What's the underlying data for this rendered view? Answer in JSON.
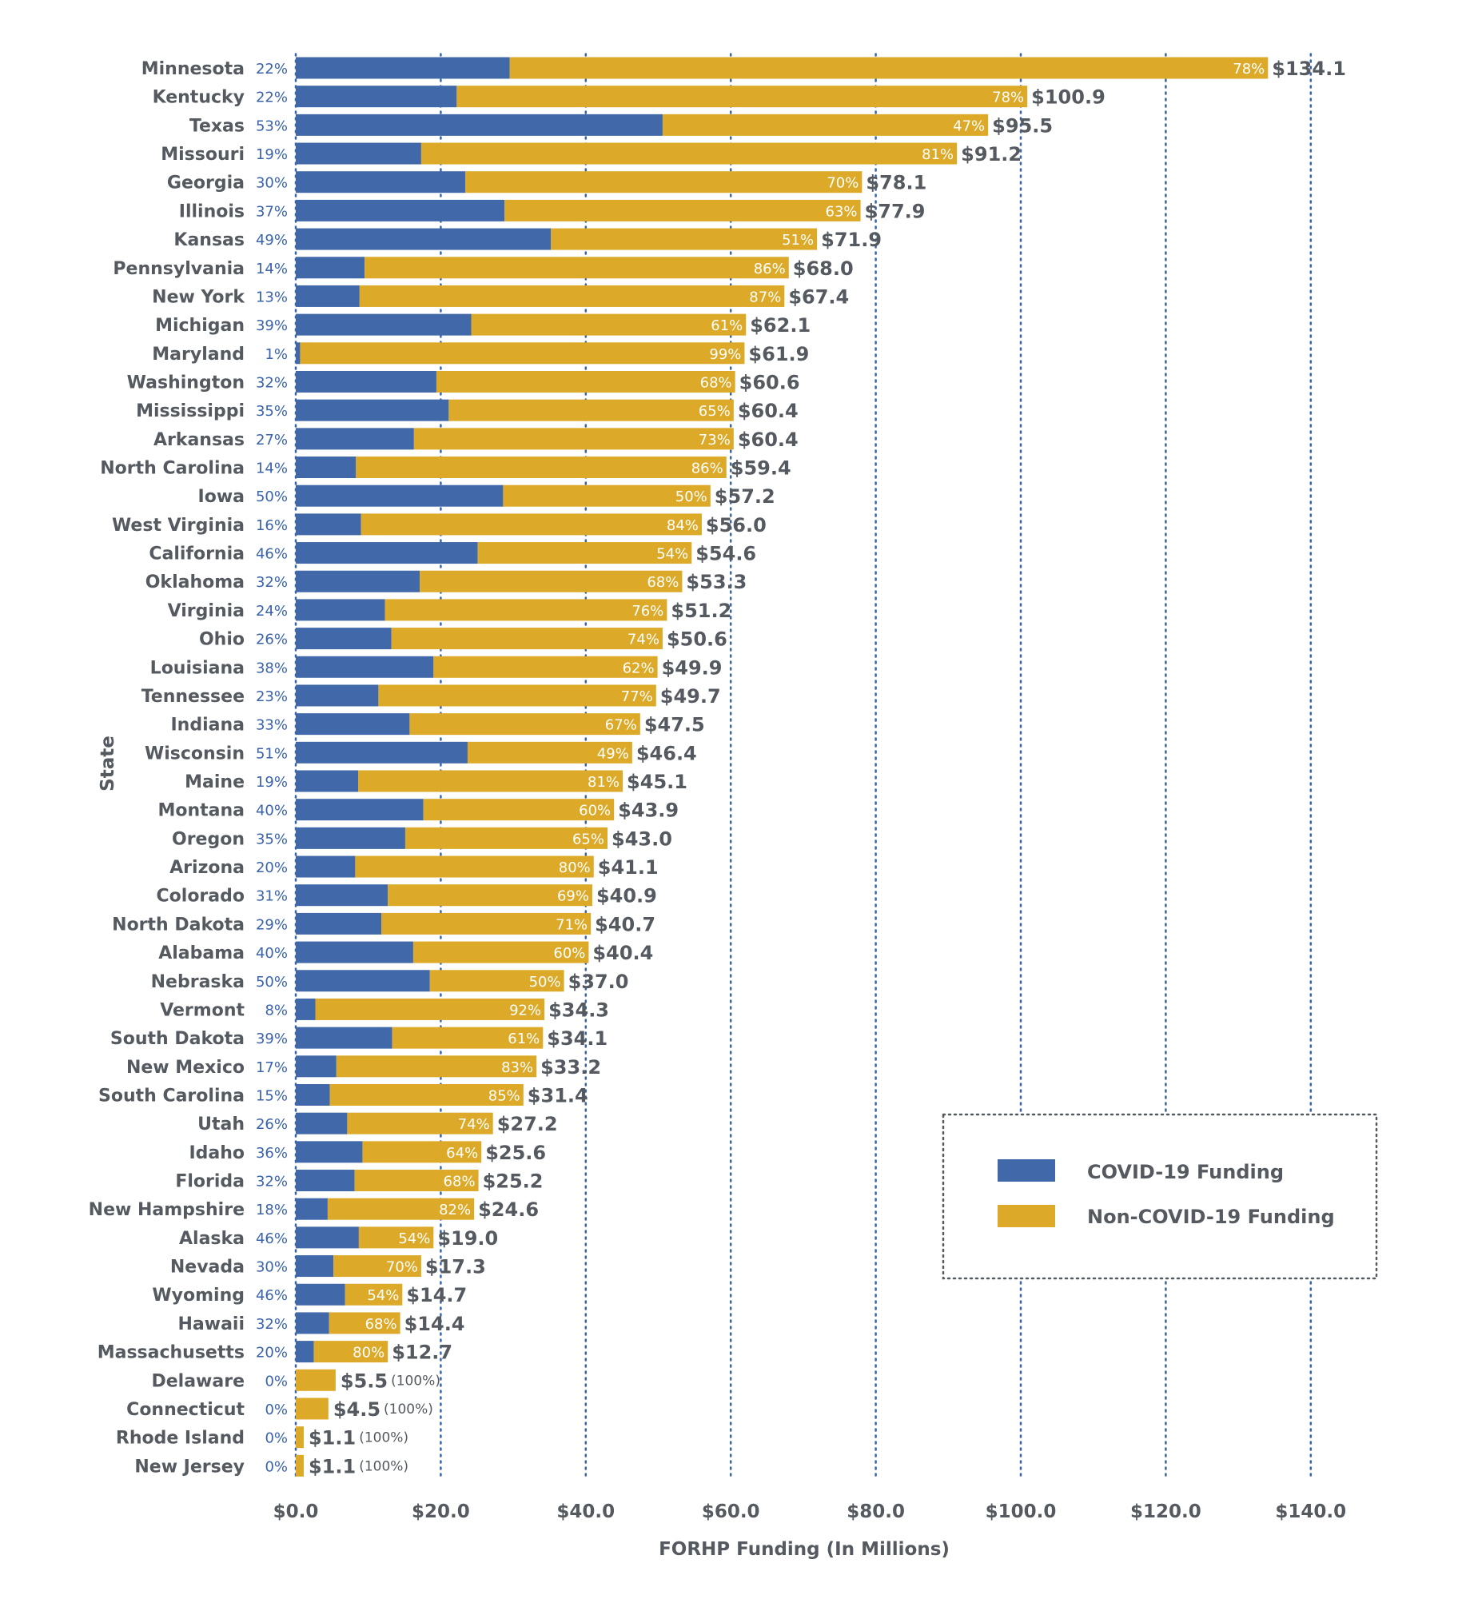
{
  "chart_data": {
    "type": "bar",
    "orientation": "horizontal",
    "stacked": true,
    "title": "",
    "xlabel": "FORHP Funding (In Millions)",
    "ylabel": "State",
    "xlim": [
      0,
      140
    ],
    "x_ticks": [
      "$0.0",
      "$20.0",
      "$40.0",
      "$60.0",
      "$80.0",
      "$100.0",
      "$120.0",
      "$140.0"
    ],
    "x_tick_values": [
      0,
      20,
      40,
      60,
      80,
      100,
      120,
      140
    ],
    "grid": "vertical dotted",
    "legend_position": "bottom-right",
    "legend": [
      {
        "name": "COVID-19 Funding",
        "color": "#4169a9"
      },
      {
        "name": "Non-COVID-19 Funding",
        "color": "#dcaa28"
      }
    ],
    "colors": {
      "covid": "#4169a9",
      "non_covid": "#dcaa28",
      "text": "#555a60",
      "pct_text": "#3a63ad",
      "grid": "#3a63ad"
    },
    "categories": [
      "Minnesota",
      "Kentucky",
      "Texas",
      "Missouri",
      "Georgia",
      "Illinois",
      "Kansas",
      "Pennsylvania",
      "New York",
      "Michigan",
      "Maryland",
      "Washington",
      "Mississippi",
      "Arkansas",
      "North Carolina",
      "Iowa",
      "West Virginia",
      "California",
      "Oklahoma",
      "Virginia",
      "Ohio",
      "Louisiana",
      "Tennessee",
      "Indiana",
      "Wisconsin",
      "Maine",
      "Montana",
      "Oregon",
      "Arizona",
      "Colorado",
      "North Dakota",
      "Alabama",
      "Nebraska",
      "Vermont",
      "South Dakota",
      "New Mexico",
      "South Carolina",
      "Utah",
      "Idaho",
      "Florida",
      "New Hampshire",
      "Alaska",
      "Nevada",
      "Wyoming",
      "Hawaii",
      "Massachusetts",
      "Delaware",
      "Connecticut",
      "Rhode Island",
      "New Jersey"
    ],
    "totals": [
      134.1,
      100.9,
      95.5,
      91.2,
      78.1,
      77.9,
      71.9,
      68.0,
      67.4,
      62.1,
      61.9,
      60.6,
      60.4,
      60.4,
      59.4,
      57.2,
      56.0,
      54.6,
      53.3,
      51.2,
      50.6,
      49.9,
      49.7,
      47.5,
      46.4,
      45.1,
      43.9,
      43.0,
      41.1,
      40.9,
      40.7,
      40.4,
      37.0,
      34.3,
      34.1,
      33.2,
      31.4,
      27.2,
      25.6,
      25.2,
      24.6,
      19.0,
      17.3,
      14.7,
      14.4,
      12.7,
      5.5,
      4.5,
      1.1,
      1.1
    ],
    "total_labels": [
      "$134.1",
      "$100.9",
      "$95.5",
      "$91.2",
      "$78.1",
      "$77.9",
      "$71.9",
      "$68.0",
      "$67.4",
      "$62.1",
      "$61.9",
      "$60.6",
      "$60.4",
      "$60.4",
      "$59.4",
      "$57.2",
      "$56.0",
      "$54.6",
      "$53.3",
      "$51.2",
      "$50.6",
      "$49.9",
      "$49.7",
      "$47.5",
      "$46.4",
      "$45.1",
      "$43.9",
      "$43.0",
      "$41.1",
      "$40.9",
      "$40.7",
      "$40.4",
      "$37.0",
      "$34.3",
      "$34.1",
      "$33.2",
      "$31.4",
      "$27.2",
      "$25.6",
      "$25.2",
      "$24.6",
      "$19.0",
      "$17.3",
      "$14.7",
      "$14.4",
      "$12.7",
      "$5.5",
      "$4.5",
      "$1.1",
      "$1.1"
    ],
    "covid_pct": [
      22,
      22,
      53,
      19,
      30,
      37,
      49,
      14,
      13,
      39,
      1,
      32,
      35,
      27,
      14,
      50,
      16,
      46,
      32,
      24,
      26,
      38,
      23,
      33,
      51,
      19,
      40,
      35,
      20,
      31,
      29,
      40,
      50,
      8,
      39,
      17,
      15,
      26,
      36,
      32,
      18,
      46,
      30,
      46,
      32,
      20,
      0,
      0,
      0,
      0
    ],
    "non_covid_pct": [
      78,
      78,
      47,
      81,
      70,
      63,
      51,
      86,
      87,
      61,
      99,
      68,
      65,
      73,
      86,
      50,
      84,
      54,
      68,
      76,
      74,
      62,
      77,
      67,
      49,
      81,
      60,
      65,
      80,
      69,
      71,
      60,
      50,
      92,
      61,
      83,
      85,
      74,
      64,
      68,
      82,
      54,
      70,
      54,
      68,
      80,
      100,
      100,
      100,
      100
    ],
    "series": [
      {
        "name": "COVID-19 Funding",
        "values": [
          29.5,
          22.2,
          50.6,
          17.3,
          23.4,
          28.8,
          35.2,
          9.5,
          8.8,
          24.2,
          0.6,
          19.4,
          21.1,
          16.3,
          8.3,
          28.6,
          9.0,
          25.1,
          17.1,
          12.3,
          13.2,
          19.0,
          11.4,
          15.7,
          23.7,
          8.6,
          17.6,
          15.1,
          8.2,
          12.7,
          11.8,
          16.2,
          18.5,
          2.7,
          13.3,
          5.6,
          4.7,
          7.1,
          9.2,
          8.1,
          4.4,
          8.7,
          5.2,
          6.8,
          4.6,
          2.5,
          0,
          0,
          0,
          0
        ]
      },
      {
        "name": "Non-COVID-19 Funding",
        "values": [
          104.6,
          78.7,
          44.9,
          73.9,
          54.7,
          49.1,
          36.7,
          58.5,
          58.6,
          37.9,
          61.3,
          41.2,
          39.3,
          44.1,
          51.1,
          28.6,
          47.0,
          29.5,
          36.2,
          38.9,
          37.4,
          30.9,
          38.3,
          31.8,
          22.7,
          36.5,
          26.3,
          27.9,
          32.9,
          28.2,
          28.9,
          24.2,
          18.5,
          31.6,
          20.8,
          27.6,
          26.7,
          20.1,
          16.4,
          17.1,
          20.2,
          10.3,
          12.1,
          7.9,
          9.8,
          10.2,
          5.5,
          4.5,
          1.1,
          1.1
        ]
      }
    ]
  }
}
